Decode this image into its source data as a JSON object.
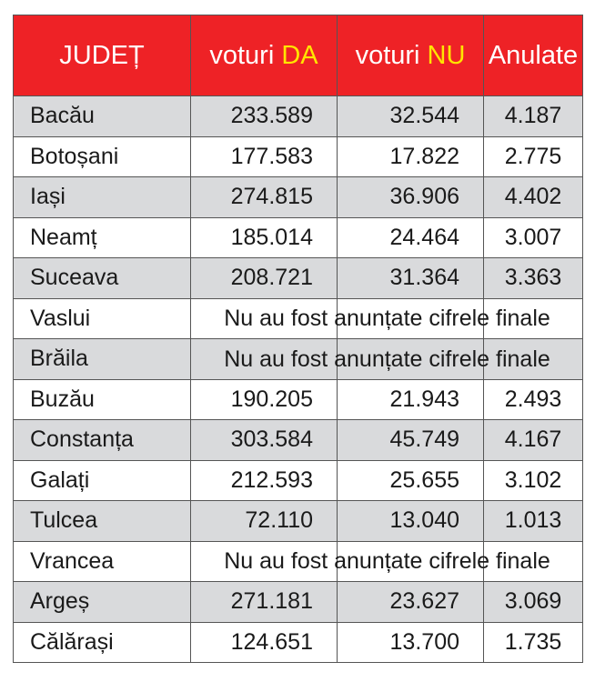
{
  "header": {
    "county": "JUDEȚ",
    "yes_prefix": "voturi ",
    "yes_word": "DA",
    "no_prefix": "voturi ",
    "no_word": "NU",
    "annulled": "Anulate"
  },
  "rows": [
    {
      "county": "Bacău",
      "yes": "233.589",
      "no": "32.544",
      "annulled": "4.187"
    },
    {
      "county": "Botoșani",
      "yes": "177.583",
      "no": "17.822",
      "annulled": "2.775"
    },
    {
      "county": "Iași",
      "yes": "274.815",
      "no": "36.906",
      "annulled": "4.402"
    },
    {
      "county": "Neamț",
      "yes": "185.014",
      "no": "24.464",
      "annulled": "3.007"
    },
    {
      "county": "Suceava",
      "yes": "208.721",
      "no": "31.364",
      "annulled": "3.363"
    },
    {
      "county": "Vaslui",
      "note": "Nu au fost anunțate cifrele finale"
    },
    {
      "county": "Brăila",
      "note": "Nu au fost anunțate cifrele finale"
    },
    {
      "county": "Buzău",
      "yes": "190.205",
      "no": "21.943",
      "annulled": "2.493"
    },
    {
      "county": "Constanța",
      "yes": "303.584",
      "no": "45.749",
      "annulled": "4.167"
    },
    {
      "county": "Galați",
      "yes": "212.593",
      "no": "25.655",
      "annulled": "3.102"
    },
    {
      "county": "Tulcea",
      "yes": "72.110",
      "no": "13.040",
      "annulled": "1.013"
    },
    {
      "county": "Vrancea",
      "note": "Nu au fost anunțate cifrele finale"
    },
    {
      "county": "Argeș",
      "yes": "271.181",
      "no": "23.627",
      "annulled": "3.069"
    },
    {
      "county": "Călărași",
      "yes": "124.651",
      "no": "13.700",
      "annulled": "1.735"
    }
  ]
}
